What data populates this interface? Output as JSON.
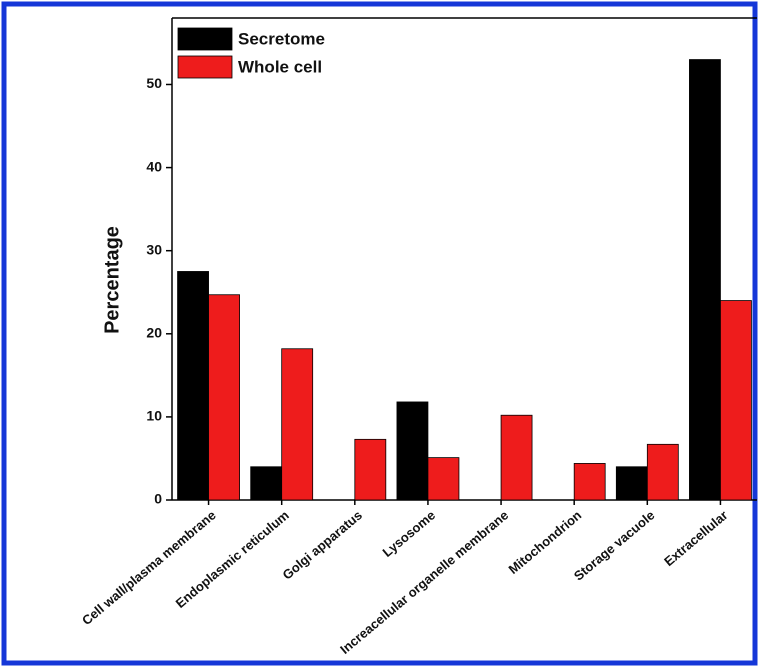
{
  "chart_data": {
    "type": "bar",
    "y_label": "Percentage",
    "categories": [
      "Cell wall/plasma membrane",
      "Endoplasmic reticulum",
      "Golgi apparatus",
      "Lysosome",
      "Increacellular organelle membrane",
      "Mitochondrion",
      "Storage vacuole",
      "Extracellular"
    ],
    "series": [
      {
        "name": "Secretome",
        "color": "#000000",
        "values": [
          27.5,
          4,
          0,
          11.8,
          0,
          0,
          4,
          53
        ]
      },
      {
        "name": "Whole cell",
        "color": "#ee1c1c",
        "values": [
          24.7,
          18.2,
          7.3,
          5.1,
          10.2,
          4.4,
          6.7,
          24
        ]
      }
    ],
    "ylim": [
      0,
      58
    ],
    "yticks": [
      0,
      10,
      20,
      30,
      40,
      50
    ],
    "legend": "upper left"
  }
}
